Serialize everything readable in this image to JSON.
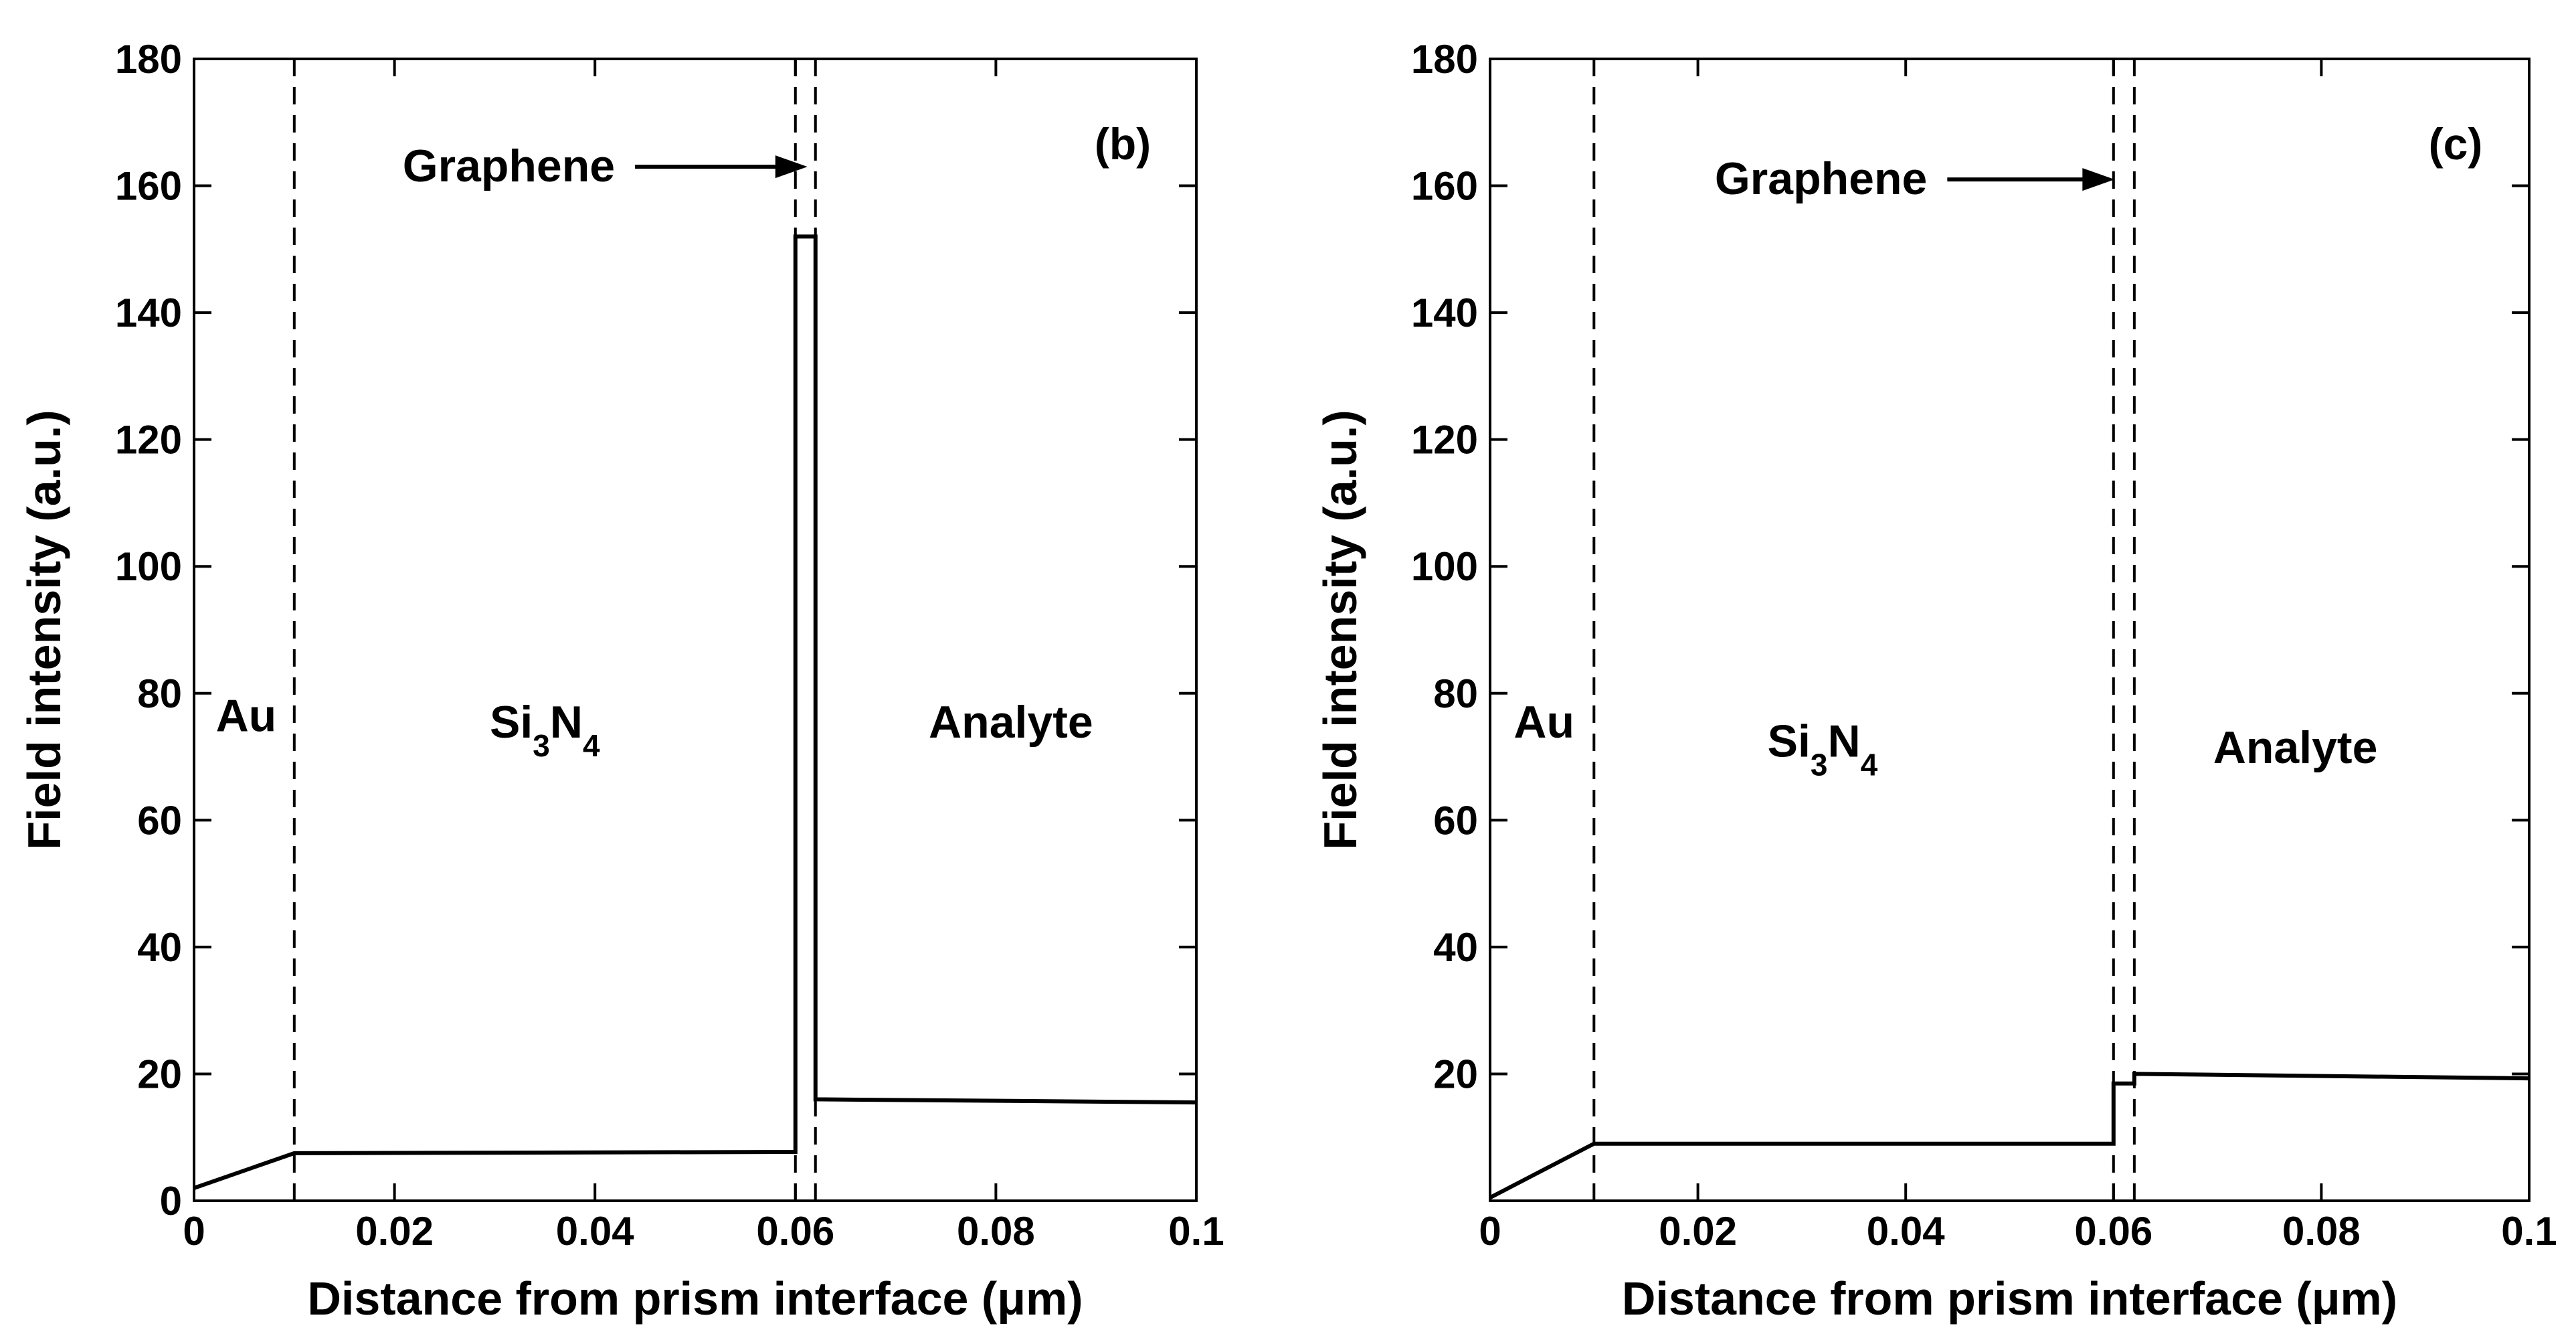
{
  "chart_data": [
    {
      "type": "line",
      "panel_label": "(b)",
      "xlabel": "Distance from prism interface (μm)",
      "ylabel": "Field intensity (a.u.)",
      "xlim": [
        0,
        0.1
      ],
      "ylim": [
        0,
        180
      ],
      "x_ticks": [
        0,
        0.02,
        0.04,
        0.06,
        0.08,
        0.1
      ],
      "x_tick_labels": [
        "0",
        "0.02",
        "0.04",
        "0.06",
        "0.08",
        "0.1"
      ],
      "y_ticks": [
        0,
        20,
        40,
        60,
        80,
        100,
        120,
        140,
        160,
        180
      ],
      "y_tick_labels": [
        "0",
        "20",
        "40",
        "60",
        "80",
        "100",
        "120",
        "140",
        "160",
        "180"
      ],
      "grid": false,
      "series": [
        {
          "x": [
            0,
            0.01,
            0.01,
            0.06,
            0.06,
            0.0603,
            0.0617,
            0.062,
            0.062,
            0.1
          ],
          "y": [
            2,
            7.5,
            7.5,
            7.7,
            152,
            152,
            152,
            152,
            16,
            15.5
          ]
        }
      ],
      "boundaries": [
        0.01,
        0.06,
        0.062
      ],
      "region_labels": [
        {
          "text": "Au",
          "x": 0.0052,
          "y": 74
        },
        {
          "text": "Analyte",
          "x": 0.0815,
          "y": 73
        }
      ],
      "si3n4_label": {
        "base1": "Si",
        "sub1": "3",
        "base2": "N",
        "sub2": "4",
        "x": 0.035,
        "y": 73
      },
      "annotation": {
        "text": "Graphene",
        "arrow_from": [
          0.044,
          163
        ],
        "arrow_to": [
          0.0612,
          163
        ]
      }
    },
    {
      "type": "line",
      "panel_label": "(c)",
      "xlabel": "Distance from prism interface (μm)",
      "ylabel": "Field intensity (a.u.)",
      "xlim": [
        0,
        0.1
      ],
      "ylim": [
        0,
        180
      ],
      "x_ticks": [
        0,
        0.02,
        0.04,
        0.06,
        0.08,
        0.1
      ],
      "x_tick_labels": [
        "0",
        "0.02",
        "0.04",
        "0.06",
        "0.08",
        "0.1"
      ],
      "y_ticks": [
        20,
        40,
        60,
        80,
        100,
        120,
        140,
        160,
        180
      ],
      "y_tick_labels": [
        "20",
        "40",
        "60",
        "80",
        "100",
        "120",
        "140",
        "160",
        "180"
      ],
      "grid": false,
      "series": [
        {
          "x": [
            0,
            0.01,
            0.01,
            0.06,
            0.06,
            0.062,
            0.062,
            0.1
          ],
          "y": [
            0.5,
            9,
            9,
            9,
            18.5,
            18.5,
            20,
            19.3
          ]
        }
      ],
      "boundaries": [
        0.01,
        0.06,
        0.062
      ],
      "region_labels": [
        {
          "text": "Au",
          "x": 0.0052,
          "y": 73
        },
        {
          "text": "Analyte",
          "x": 0.0775,
          "y": 69
        }
      ],
      "si3n4_label": {
        "base1": "Si",
        "sub1": "3",
        "base2": "N",
        "sub2": "4",
        "x": 0.032,
        "y": 70
      },
      "annotation": {
        "text": "Graphene",
        "arrow_from": [
          0.044,
          161
        ],
        "arrow_to": [
          0.0601,
          161
        ]
      }
    }
  ]
}
